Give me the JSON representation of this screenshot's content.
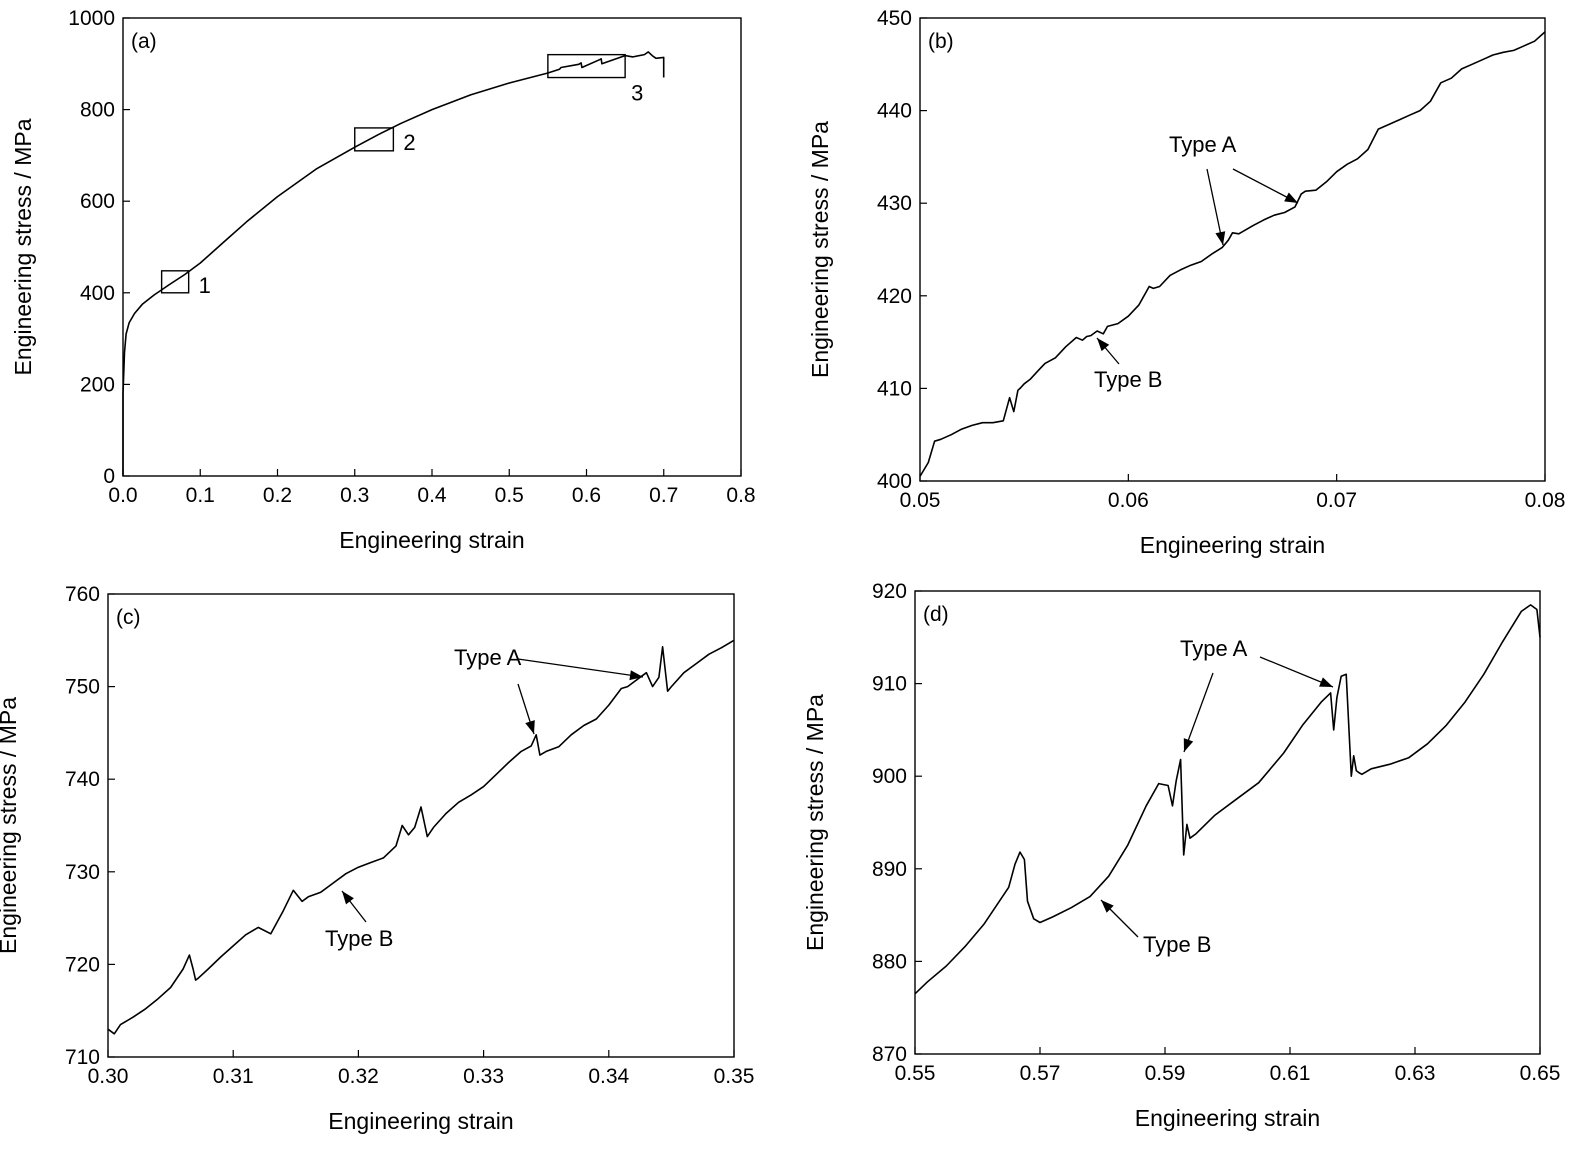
{
  "chart_data": [
    {
      "type": "line",
      "panel_label": "(a)",
      "xlabel": "Engineering strain",
      "ylabel": "Engineering stress / MPa",
      "xlim": [
        0.0,
        0.8
      ],
      "ylim": [
        0,
        1000
      ],
      "xticks": [
        "0.0",
        "0.1",
        "0.2",
        "0.3",
        "0.4",
        "0.5",
        "0.6",
        "0.7",
        "0.8"
      ],
      "yticks": [
        "0",
        "200",
        "400",
        "600",
        "800",
        "1000"
      ],
      "series": [
        {
          "x": [
            0.0,
            0.0,
            0.002,
            0.004,
            0.008,
            0.015,
            0.025,
            0.04,
            0.06,
            0.08,
            0.1,
            0.13,
            0.16,
            0.2,
            0.25,
            0.3,
            0.33,
            0.36,
            0.4,
            0.45,
            0.5,
            0.55,
            0.565,
            0.567,
            0.59,
            0.593,
            0.594,
            0.617,
            0.619,
            0.62,
            0.65,
            0.66,
            0.675,
            0.68,
            0.685,
            0.69,
            0.7,
            0.7
          ],
          "y": [
            0,
            180,
            270,
            310,
            335,
            355,
            375,
            395,
            418,
            440,
            465,
            510,
            555,
            610,
            670,
            718,
            745,
            770,
            800,
            832,
            858,
            880,
            888,
            892,
            899,
            902,
            892,
            909,
            911,
            900,
            918,
            915,
            920,
            926,
            918,
            912,
            914,
            870
          ]
        }
      ],
      "boxes": [
        {
          "label": "1",
          "x": [
            0.05,
            0.085
          ],
          "y": [
            400,
            448
          ]
        },
        {
          "label": "2",
          "x": [
            0.3,
            0.35
          ],
          "y": [
            710,
            760
          ]
        },
        {
          "label": "3",
          "x": [
            0.55,
            0.65
          ],
          "y": [
            870,
            920
          ]
        }
      ]
    },
    {
      "type": "line",
      "panel_label": "(b)",
      "xlabel": "Engineering strain",
      "ylabel": "Engineering stress / MPa",
      "xlim": [
        0.05,
        0.08
      ],
      "ylim": [
        400,
        450
      ],
      "xticks": [
        "0.05",
        "0.06",
        "0.07",
        "0.08"
      ],
      "yticks": [
        "400",
        "410",
        "420",
        "430",
        "440",
        "450"
      ],
      "series": [
        {
          "x": [
            0.05,
            0.0504,
            0.0507,
            0.051,
            0.0515,
            0.052,
            0.0525,
            0.053,
            0.0535,
            0.054,
            0.0543,
            0.0545,
            0.0547,
            0.0548,
            0.055,
            0.0553,
            0.0557,
            0.056,
            0.0565,
            0.057,
            0.0575,
            0.0578,
            0.058,
            0.0582,
            0.0585,
            0.0588,
            0.059,
            0.0595,
            0.06,
            0.0605,
            0.061,
            0.0612,
            0.0615,
            0.062,
            0.0625,
            0.063,
            0.0635,
            0.064,
            0.0645,
            0.0648,
            0.065,
            0.0653,
            0.066,
            0.0665,
            0.067,
            0.0675,
            0.068,
            0.0683,
            0.0685,
            0.069,
            0.0695,
            0.07,
            0.0705,
            0.071,
            0.0715,
            0.072,
            0.0725,
            0.073,
            0.0735,
            0.074,
            0.0745,
            0.075,
            0.0755,
            0.076,
            0.0765,
            0.077,
            0.0775,
            0.078,
            0.0785,
            0.079,
            0.0795,
            0.08
          ],
          "y": [
            400.5,
            402,
            404.3,
            404.5,
            405,
            405.6,
            406,
            406.3,
            406.3,
            406.5,
            409,
            407.5,
            409.8,
            410,
            410.5,
            411,
            412,
            412.7,
            413.3,
            414.5,
            415.5,
            415.2,
            415.6,
            415.7,
            416.2,
            415.9,
            416.7,
            417,
            417.8,
            419,
            421,
            420.8,
            421,
            422.2,
            422.8,
            423.3,
            423.7,
            424.5,
            425.2,
            426,
            426.8,
            426.7,
            427.6,
            428.2,
            428.7,
            429,
            429.6,
            431,
            431.3,
            431.4,
            432.3,
            433.4,
            434.2,
            434.8,
            435.8,
            438,
            438.5,
            439,
            439.5,
            440,
            441,
            443,
            443.5,
            444.5,
            445,
            445.5,
            446,
            446.3,
            446.5,
            447,
            447.5,
            448.5
          ]
        }
      ],
      "annotations": [
        {
          "text": "Type A"
        },
        {
          "text": "Type B"
        }
      ]
    },
    {
      "type": "line",
      "panel_label": "(c)",
      "xlabel": "Engineering strain",
      "ylabel": "Engineering stress / MPa",
      "xlim": [
        0.3,
        0.35
      ],
      "ylim": [
        710,
        760
      ],
      "xticks": [
        "0.30",
        "0.31",
        "0.32",
        "0.33",
        "0.34",
        "0.35"
      ],
      "yticks": [
        "710",
        "720",
        "730",
        "740",
        "750",
        "760"
      ],
      "series": [
        {
          "x": [
            0.3,
            0.3005,
            0.301,
            0.302,
            0.303,
            0.304,
            0.305,
            0.306,
            0.3065,
            0.3068,
            0.307,
            0.3072,
            0.308,
            0.309,
            0.31,
            0.311,
            0.312,
            0.313,
            0.314,
            0.3148,
            0.3155,
            0.316,
            0.317,
            0.318,
            0.319,
            0.32,
            0.321,
            0.322,
            0.323,
            0.3235,
            0.324,
            0.3245,
            0.325,
            0.3255,
            0.326,
            0.327,
            0.328,
            0.329,
            0.33,
            0.331,
            0.332,
            0.333,
            0.3338,
            0.3342,
            0.3345,
            0.335,
            0.336,
            0.337,
            0.338,
            0.339,
            0.34,
            0.341,
            0.3415,
            0.342,
            0.3425,
            0.343,
            0.3435,
            0.344,
            0.3443,
            0.3447,
            0.345,
            0.346,
            0.347,
            0.348,
            0.349,
            0.35
          ],
          "y": [
            713,
            712.5,
            713.5,
            714.3,
            715.2,
            716.3,
            717.5,
            719.5,
            721,
            719.5,
            718.3,
            718.5,
            719.5,
            720.8,
            722,
            723.2,
            724,
            723.3,
            725.8,
            728,
            726.8,
            727.3,
            727.8,
            728.8,
            729.8,
            730.5,
            731,
            731.5,
            732.8,
            735,
            734,
            734.8,
            737,
            733.8,
            734.8,
            736.3,
            737.5,
            738.3,
            739.2,
            740.5,
            741.8,
            743,
            743.6,
            744.8,
            742.6,
            743,
            743.5,
            744.8,
            745.8,
            746.5,
            748,
            749.8,
            750,
            750.5,
            751,
            751.5,
            750,
            751,
            754.3,
            749.5,
            750,
            751.5,
            752.5,
            753.5,
            754.2,
            755
          ]
        }
      ],
      "annotations": [
        {
          "text": "Type A"
        },
        {
          "text": "Type B"
        }
      ]
    },
    {
      "type": "line",
      "panel_label": "(d)",
      "xlabel": "Engineering strain",
      "ylabel": "Engineering stress / MPa",
      "xlim": [
        0.55,
        0.65
      ],
      "ylim": [
        870,
        920
      ],
      "xticks": [
        "0.55",
        "0.57",
        "0.59",
        "0.61",
        "0.63",
        "0.65"
      ],
      "yticks": [
        "870",
        "880",
        "890",
        "900",
        "910",
        "920"
      ],
      "series": [
        {
          "x": [
            0.55,
            0.552,
            0.555,
            0.558,
            0.561,
            0.5635,
            0.565,
            0.566,
            0.5668,
            0.5675,
            0.568,
            0.569,
            0.57,
            0.572,
            0.575,
            0.578,
            0.581,
            0.584,
            0.587,
            0.589,
            0.5905,
            0.5912,
            0.5918,
            0.5925,
            0.593,
            0.5935,
            0.594,
            0.595,
            0.598,
            0.601,
            0.605,
            0.609,
            0.612,
            0.615,
            0.6165,
            0.617,
            0.6175,
            0.6182,
            0.619,
            0.6198,
            0.6202,
            0.6206,
            0.621,
            0.6215,
            0.623,
            0.626,
            0.629,
            0.632,
            0.635,
            0.638,
            0.641,
            0.644,
            0.647,
            0.6485,
            0.6495,
            0.65
          ],
          "y": [
            876.5,
            877.8,
            879.5,
            881.6,
            884,
            886.5,
            888,
            890.5,
            891.8,
            891,
            886.5,
            884.6,
            884.2,
            884.8,
            885.8,
            887,
            889.2,
            892.5,
            896.8,
            899.2,
            899,
            896.8,
            899.5,
            901.8,
            891.5,
            894.8,
            893.3,
            893.8,
            895.8,
            897.3,
            899.3,
            902.5,
            905.5,
            908,
            909,
            905,
            908.5,
            910.8,
            911,
            900,
            902.2,
            900.6,
            900.4,
            900.2,
            900.8,
            901.3,
            902,
            903.5,
            905.5,
            908,
            911,
            914.5,
            917.8,
            918.5,
            918,
            915
          ]
        }
      ],
      "annotations": [
        {
          "text": "Type A"
        },
        {
          "text": "Type B"
        }
      ]
    }
  ]
}
